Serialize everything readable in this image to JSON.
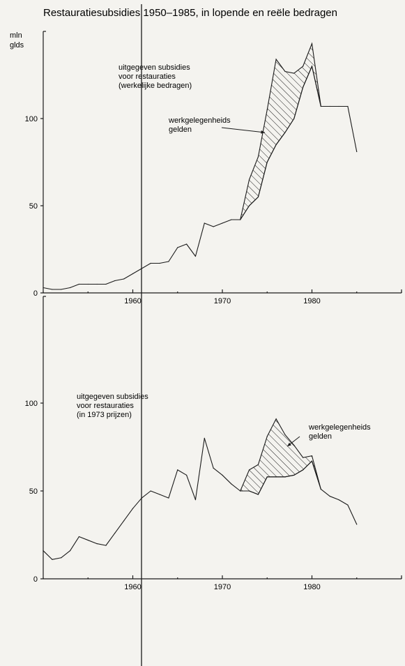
{
  "chart_data": [
    {
      "type": "line",
      "title": "Restauratiesubsidies 1950–1985, in lopende en reële bedragen",
      "ylabel": "mln\ngld s",
      "ylabel_lines": [
        "mln",
        "glds"
      ],
      "xlim": [
        1950,
        1990
      ],
      "ylim": [
        0,
        150
      ],
      "x_ticks": [
        1960,
        1970,
        1980
      ],
      "y_ticks": [
        0,
        50,
        100
      ],
      "grid": false,
      "series": [
        {
          "role": "base",
          "x": [
            1950,
            1951,
            1952,
            1953,
            1954,
            1955,
            1956,
            1957,
            1958,
            1959,
            1960,
            1961,
            1962,
            1963,
            1964,
            1965,
            1966,
            1967,
            1968,
            1969,
            1970,
            1971,
            1972,
            1973,
            1974,
            1975,
            1976,
            1977,
            1978,
            1979,
            1980,
            1981,
            1982,
            1983,
            1984,
            1985
          ],
          "values": [
            3,
            2,
            2,
            3,
            5,
            5,
            5,
            5,
            7,
            8,
            11,
            14,
            17,
            17,
            18,
            26,
            28,
            21,
            40,
            38,
            40,
            42,
            42,
            50,
            55,
            75,
            85,
            92,
            100,
            118,
            130,
            107,
            107,
            107,
            107,
            81
          ]
        },
        {
          "role": "upper",
          "x": [
            1972,
            1973,
            1974,
            1975,
            1976,
            1977,
            1978,
            1979,
            1980,
            1981
          ],
          "values": [
            42,
            65,
            78,
            105,
            134,
            127,
            126,
            130,
            143,
            107
          ]
        }
      ],
      "annotations": [
        {
          "lines": [
            "uitgegeven subsidies",
            "voor restauraties",
            "(werkelijke bedragen)"
          ]
        },
        {
          "lines": [
            "werkgelegenheids",
            "gelden"
          ]
        }
      ]
    },
    {
      "type": "line",
      "xlim": [
        1950,
        1990
      ],
      "ylim": [
        0,
        150
      ],
      "x_ticks": [
        1960,
        1970,
        1980
      ],
      "y_ticks": [
        0,
        50,
        100
      ],
      "grid": false,
      "series": [
        {
          "role": "base",
          "x": [
            1950,
            1951,
            1952,
            1953,
            1954,
            1955,
            1956,
            1957,
            1958,
            1959,
            1960,
            1961,
            1962,
            1963,
            1964,
            1965,
            1966,
            1967,
            1968,
            1969,
            1970,
            1971,
            1972,
            1973,
            1974,
            1975,
            1976,
            1977,
            1978,
            1979,
            1980,
            1981,
            1982,
            1983,
            1984,
            1985
          ],
          "values": [
            16,
            11,
            12,
            16,
            24,
            22,
            20,
            19,
            26,
            33,
            40,
            46,
            50,
            48,
            46,
            62,
            59,
            45,
            80,
            63,
            59,
            54,
            50,
            50,
            48,
            58,
            58,
            58,
            59,
            62,
            67,
            51,
            47,
            45,
            42,
            31
          ]
        },
        {
          "role": "upper",
          "x": [
            1972,
            1973,
            1974,
            1975,
            1976,
            1977,
            1978,
            1979,
            1980,
            1981
          ],
          "values": [
            50,
            62,
            65,
            81,
            91,
            82,
            76,
            69,
            70,
            51
          ]
        }
      ],
      "annotations": [
        {
          "lines": [
            "uitgegeven subsidies",
            "voor restauraties",
            "(in 1973 prijzen)"
          ]
        },
        {
          "lines": [
            "werkgelegenheids",
            "gelden"
          ]
        }
      ]
    }
  ]
}
